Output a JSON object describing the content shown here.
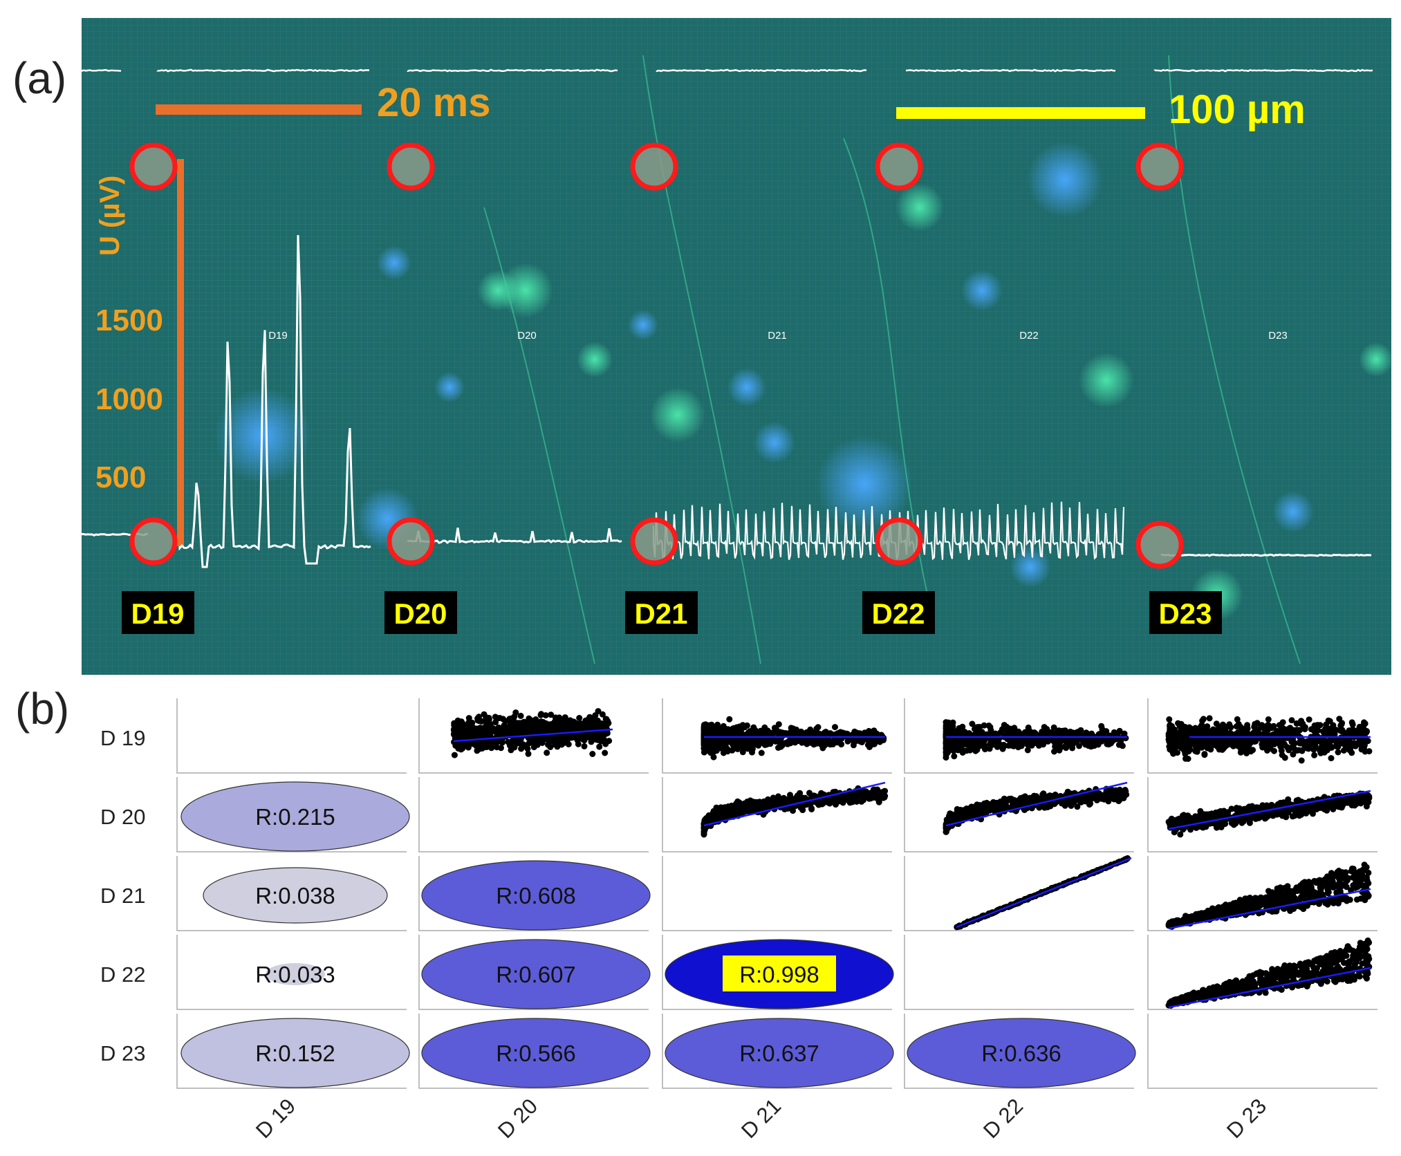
{
  "panel_a": {
    "label": "(a)",
    "scale_time": "20 ms",
    "scale_length": "100 µm",
    "y_axis_title": "U (µV)",
    "y_ticks": [
      "1500",
      "1000",
      "500"
    ],
    "electrodes": [
      "D19",
      "D20",
      "D21",
      "D22",
      "D23"
    ],
    "trace_labels": [
      "D19",
      "D20",
      "D21",
      "D22",
      "D23"
    ],
    "colors": {
      "scale_time": "#e8702a",
      "scale_length": "#ffff00",
      "electrode_ring": "#ff1a1a",
      "trace": "#ffffff",
      "background": "#1f6a6a"
    }
  },
  "chart_data": {
    "type": "table",
    "panel_label": "(b)",
    "row_labels": [
      "D 19",
      "D 20",
      "D 21",
      "D 22",
      "D 23"
    ],
    "col_labels": [
      "D 19",
      "D 20",
      "D 21",
      "D 22",
      "D 23"
    ],
    "correlations": [
      {
        "row": 1,
        "col": 0,
        "label": "R:0.215",
        "r": 0.215
      },
      {
        "row": 2,
        "col": 0,
        "label": "R:0.038",
        "r": 0.038
      },
      {
        "row": 3,
        "col": 0,
        "label": "R:0.033",
        "r": 0.033
      },
      {
        "row": 4,
        "col": 0,
        "label": "R:0.152",
        "r": 0.152
      },
      {
        "row": 2,
        "col": 1,
        "label": "R:0.608",
        "r": 0.608
      },
      {
        "row": 3,
        "col": 1,
        "label": "R:0.607",
        "r": 0.607
      },
      {
        "row": 4,
        "col": 1,
        "label": "R:0.566",
        "r": 0.566
      },
      {
        "row": 3,
        "col": 2,
        "label": "R:0.998",
        "r": 0.998,
        "highlight": true
      },
      {
        "row": 4,
        "col": 2,
        "label": "R:0.637",
        "r": 0.637
      },
      {
        "row": 4,
        "col": 3,
        "label": "R:0.636",
        "r": 0.636
      }
    ],
    "scatter_cells": [
      {
        "row": 0,
        "col": 1
      },
      {
        "row": 0,
        "col": 2
      },
      {
        "row": 0,
        "col": 3
      },
      {
        "row": 0,
        "col": 4
      },
      {
        "row": 1,
        "col": 2
      },
      {
        "row": 1,
        "col": 3
      },
      {
        "row": 1,
        "col": 4
      },
      {
        "row": 2,
        "col": 3
      },
      {
        "row": 2,
        "col": 4
      },
      {
        "row": 3,
        "col": 4
      }
    ],
    "colors": {
      "strong": "#1010d0",
      "medium": "#5c5cd8",
      "weak": "#b8b8e0",
      "fit_line": "#1a1aff",
      "points": "#000000",
      "highlight": "#ffff00"
    }
  }
}
